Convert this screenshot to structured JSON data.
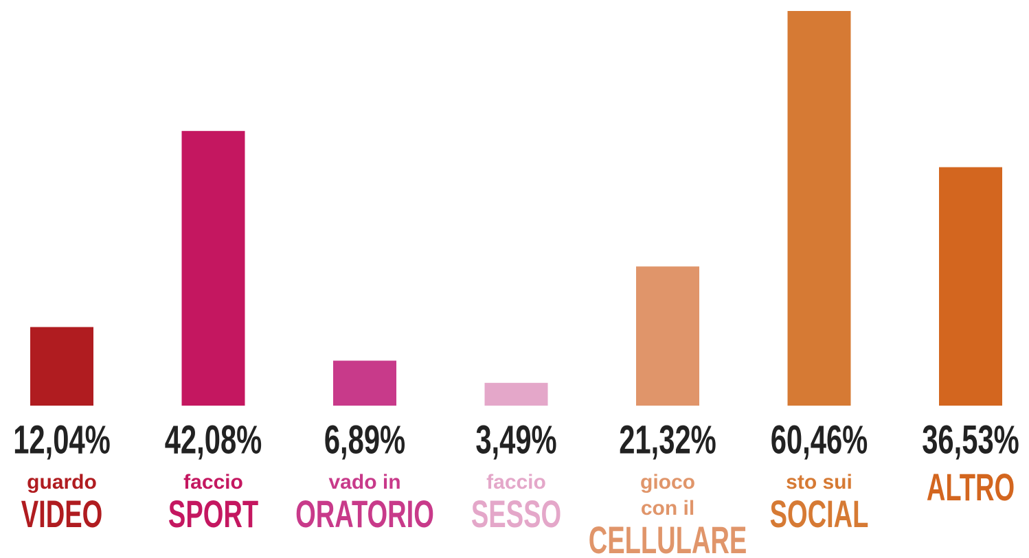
{
  "chart_data": {
    "type": "bar",
    "categories": [
      [
        "guardo",
        "VIDEO"
      ],
      [
        "faccio",
        "SPORT"
      ],
      [
        "vado in",
        "ORATORIO"
      ],
      [
        "faccio",
        "SESSO"
      ],
      [
        "gioco",
        "con il",
        "CELLULARE"
      ],
      [
        "sto sui",
        "SOCIAL"
      ],
      [
        "ALTRO"
      ]
    ],
    "values": [
      12.04,
      42.08,
      6.89,
      3.49,
      21.32,
      60.46,
      36.53
    ],
    "value_labels": [
      "12,04%",
      "42,08%",
      "6,89%",
      "3,49%",
      "21,32%",
      "60,46%",
      "36,53%"
    ],
    "colors": [
      "#b01c20",
      "#c41760",
      "#c83a8a",
      "#e4a7c9",
      "#e0956a",
      "#d67a34",
      "#d3661f"
    ],
    "ylim": [
      0,
      60.46
    ]
  }
}
